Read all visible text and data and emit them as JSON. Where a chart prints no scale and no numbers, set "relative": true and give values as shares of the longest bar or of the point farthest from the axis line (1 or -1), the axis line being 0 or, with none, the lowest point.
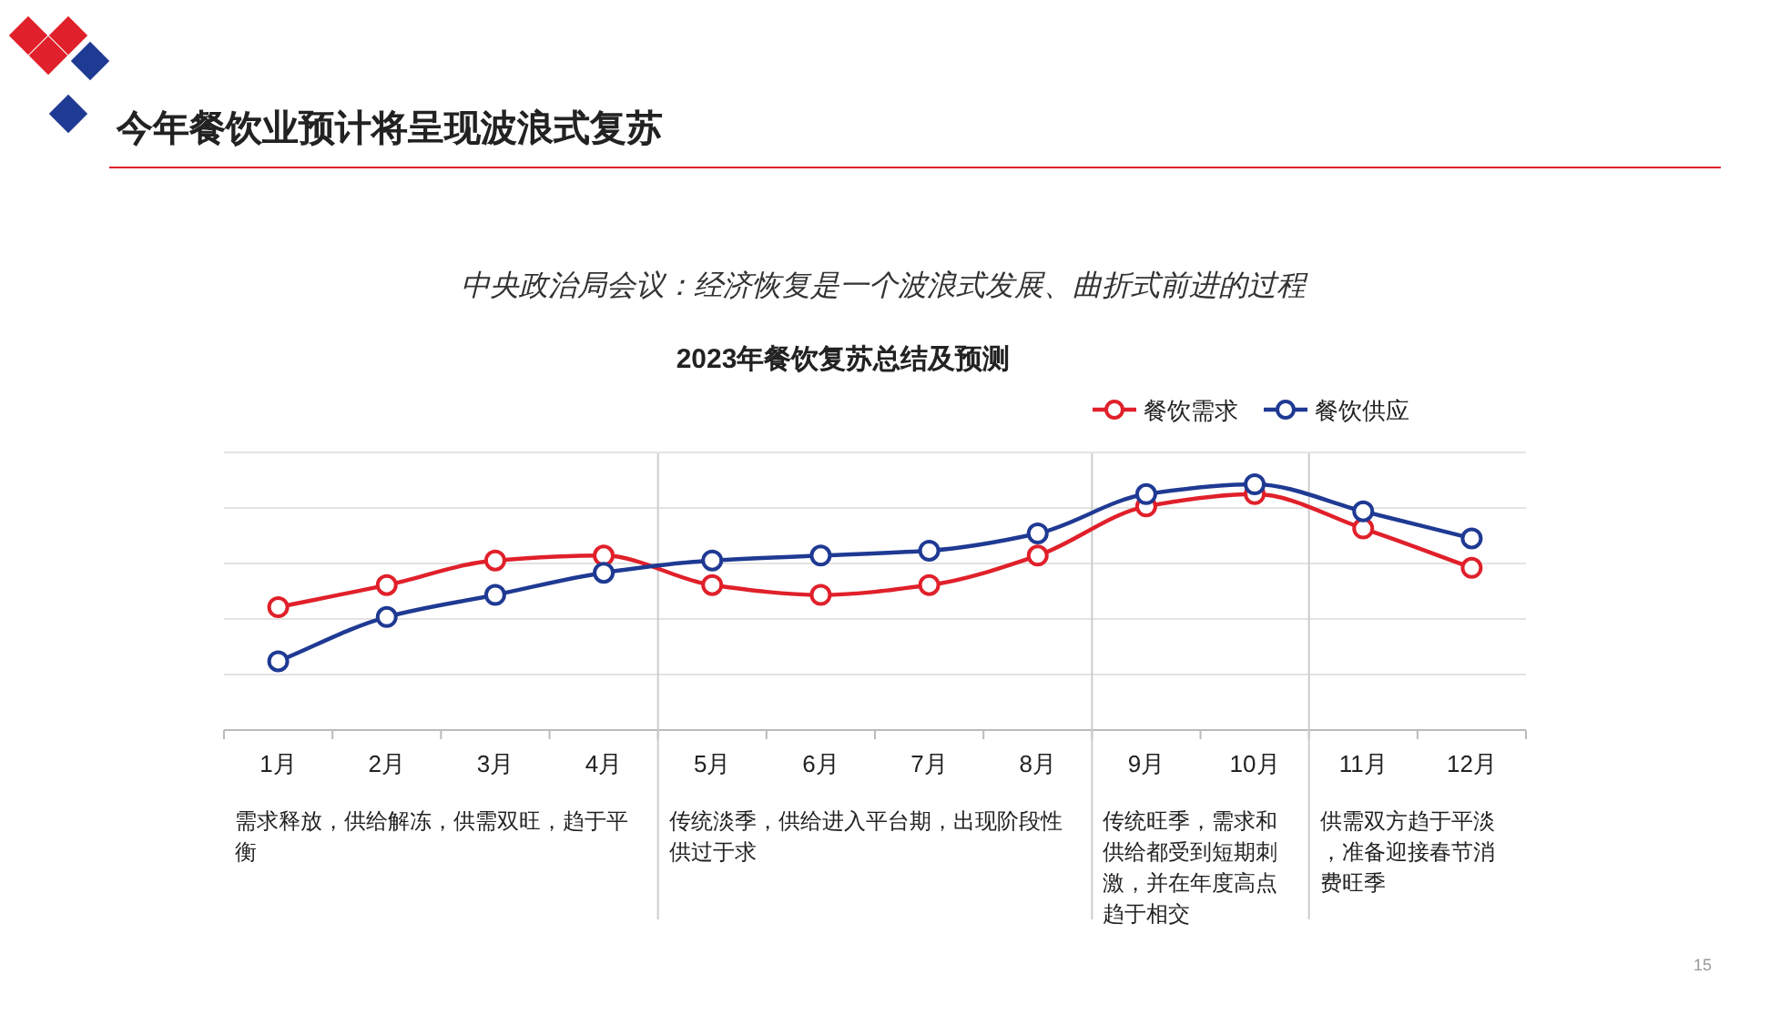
{
  "chart_data": {
    "type": "line",
    "title": "今年餐饮业预计将呈现波浪式复苏",
    "subtitle": "中央政治局会议：经济恢复是一个波浪式发展、曲折式前进的过程",
    "categories": [
      "1月",
      "2月",
      "3月",
      "4月",
      "5月",
      "6月",
      "7月",
      "8月",
      "9月",
      "10月",
      "11月",
      "12月"
    ],
    "relative": true,
    "grid": "y",
    "legend": "top right",
    "marker": "circle",
    "line_style": "solid",
    "series": [
      {
        "name": "餐饮需求",
        "color": "#e0202a",
        "values": [
          0.5,
          0.59,
          0.69,
          0.71,
          0.59,
          0.55,
          0.59,
          0.71,
          0.91,
          0.96,
          0.82,
          0.66
        ]
      },
      {
        "name": "餐饮供应",
        "color": "#1f3a93",
        "values": [
          0.28,
          0.46,
          0.55,
          0.64,
          0.69,
          0.71,
          0.73,
          0.8,
          0.96,
          1,
          0.89,
          0.78
        ]
      }
    ],
    "annotations": [
      "2023年餐饮复苏总结及预测",
      "15",
      "需求释放，供给解冻，供需双旺，趋于平衡",
      "传统淡季，供给进入平台期，出现阶段性供过于求",
      "传统旺季，需求和供给都受到短期刺激，并在年度高点趋于相交",
      "供需双方趋于平淡，准备迎接春节消费旺季"
    ]
  }
}
